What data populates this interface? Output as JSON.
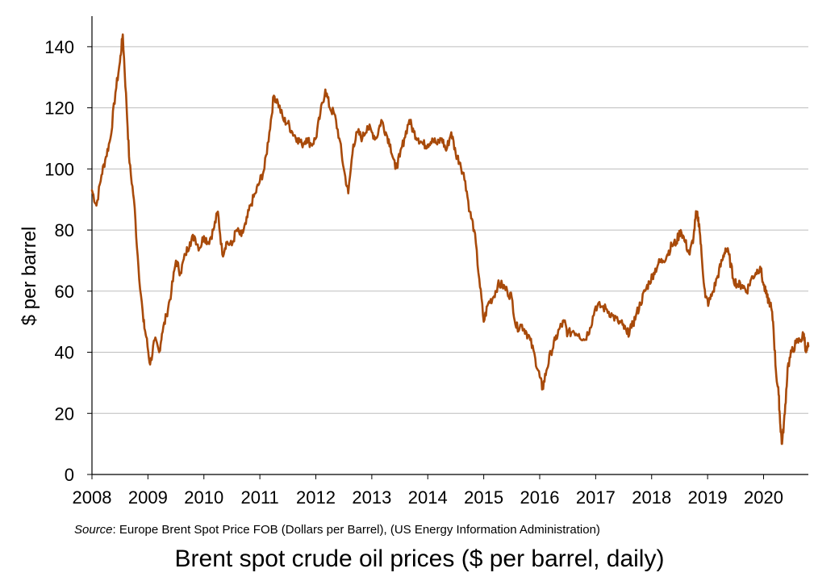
{
  "chart_data": {
    "type": "line",
    "title": "Brent spot crude oil prices ($ per barrel, daily)",
    "xlabel": "",
    "ylabel": "$ per barrel",
    "source_prefix": "Source",
    "source_text": ": Europe Brent Spot Price FOB (Dollars per Barrel), (US Energy Information Administration)",
    "xlim": [
      2008,
      2020.8
    ],
    "ylim": [
      0,
      150
    ],
    "x_ticks": [
      "2008",
      "2009",
      "2010",
      "2011",
      "2012",
      "2013",
      "2014",
      "2015",
      "2016",
      "2017",
      "2018",
      "2019",
      "2020"
    ],
    "y_ticks": [
      0,
      20,
      40,
      60,
      80,
      100,
      120,
      140
    ],
    "grid": "horizontal",
    "line_color": "#a84a0a",
    "series": [
      {
        "name": "",
        "x": [
          2008.0,
          2008.08,
          2008.17,
          2008.25,
          2008.33,
          2008.42,
          2008.5,
          2008.55,
          2008.62,
          2008.67,
          2008.75,
          2008.83,
          2008.92,
          2008.97,
          2009.04,
          2009.12,
          2009.2,
          2009.25,
          2009.33,
          2009.42,
          2009.5,
          2009.58,
          2009.67,
          2009.75,
          2009.83,
          2009.92,
          2010.0,
          2010.08,
          2010.17,
          2010.25,
          2010.33,
          2010.4,
          2010.5,
          2010.58,
          2010.67,
          2010.75,
          2010.83,
          2010.92,
          2011.0,
          2011.08,
          2011.17,
          2011.25,
          2011.32,
          2011.42,
          2011.5,
          2011.58,
          2011.67,
          2011.75,
          2011.83,
          2011.92,
          2012.0,
          2012.08,
          2012.17,
          2012.25,
          2012.33,
          2012.42,
          2012.5,
          2012.58,
          2012.67,
          2012.75,
          2012.83,
          2012.92,
          2013.0,
          2013.08,
          2013.17,
          2013.25,
          2013.33,
          2013.42,
          2013.5,
          2013.58,
          2013.67,
          2013.75,
          2013.83,
          2013.92,
          2014.0,
          2014.08,
          2014.17,
          2014.25,
          2014.33,
          2014.42,
          2014.5,
          2014.58,
          2014.67,
          2014.75,
          2014.83,
          2014.92,
          2015.0,
          2015.08,
          2015.17,
          2015.25,
          2015.33,
          2015.42,
          2015.5,
          2015.58,
          2015.67,
          2015.75,
          2015.83,
          2015.92,
          2016.0,
          2016.05,
          2016.12,
          2016.2,
          2016.28,
          2016.36,
          2016.44,
          2016.5,
          2016.6,
          2016.7,
          2016.8,
          2016.9,
          2017.0,
          2017.1,
          2017.2,
          2017.3,
          2017.4,
          2017.48,
          2017.56,
          2017.64,
          2017.72,
          2017.8,
          2017.88,
          2017.96,
          2018.04,
          2018.12,
          2018.2,
          2018.28,
          2018.36,
          2018.44,
          2018.52,
          2018.6,
          2018.68,
          2018.75,
          2018.8,
          2018.85,
          2018.9,
          2018.96,
          2019.02,
          2019.1,
          2019.18,
          2019.26,
          2019.32,
          2019.38,
          2019.46,
          2019.54,
          2019.62,
          2019.7,
          2019.78,
          2019.86,
          2019.94,
          2020.0,
          2020.06,
          2020.12,
          2020.17,
          2020.22,
          2020.27,
          2020.3,
          2020.33,
          2020.38,
          2020.43,
          2020.5,
          2020.58,
          2020.66,
          2020.72,
          2020.76,
          2020.8
        ],
        "values": [
          93,
          88,
          98,
          104,
          110,
          125,
          135,
          144,
          120,
          102,
          90,
          68,
          50,
          45,
          36,
          44,
          40,
          46,
          52,
          60,
          70,
          66,
          72,
          76,
          78,
          74,
          78,
          76,
          80,
          86,
          72,
          76,
          75,
          80,
          78,
          82,
          88,
          92,
          96,
          100,
          112,
          124,
          122,
          116,
          115,
          112,
          110,
          108,
          110,
          108,
          110,
          118,
          126,
          120,
          118,
          110,
          100,
          92,
          108,
          112,
          110,
          114,
          112,
          110,
          116,
          112,
          108,
          100,
          104,
          110,
          116,
          112,
          110,
          108,
          108,
          110,
          108,
          110,
          106,
          112,
          105,
          102,
          96,
          86,
          80,
          64,
          50,
          56,
          58,
          62,
          62,
          60,
          58,
          48,
          49,
          47,
          44,
          38,
          32,
          28,
          34,
          40,
          44,
          48,
          50,
          46,
          47,
          46,
          44,
          48,
          55,
          55,
          54,
          52,
          50,
          49,
          46,
          48,
          52,
          56,
          60,
          63,
          66,
          69,
          70,
          72,
          75,
          76,
          80,
          76,
          72,
          78,
          86,
          82,
          70,
          58,
          56,
          60,
          65,
          70,
          74,
          72,
          64,
          62,
          62,
          60,
          64,
          66,
          68,
          62,
          58,
          56,
          50,
          34,
          26,
          16,
          10,
          20,
          35,
          40,
          43,
          44,
          46,
          40,
          42
        ]
      }
    ]
  }
}
